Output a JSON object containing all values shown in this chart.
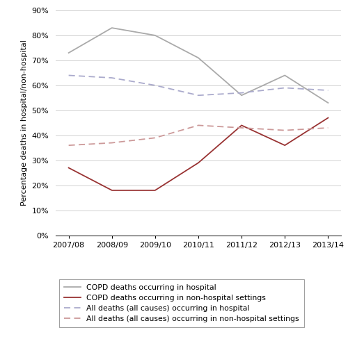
{
  "x_labels": [
    "2007/08",
    "2008/09",
    "2009/10",
    "2010/11",
    "2011/12",
    "2012/13",
    "2013/14"
  ],
  "copd_hospital": [
    73,
    83,
    80,
    71,
    56,
    64,
    53
  ],
  "copd_non_hospital": [
    27,
    18,
    18,
    29,
    44,
    36,
    47
  ],
  "all_hospital": [
    64,
    63,
    60,
    56,
    57,
    59,
    58
  ],
  "all_non_hospital": [
    36,
    37,
    39,
    44,
    43,
    42,
    43
  ],
  "copd_hospital_color": "#aaaaaa",
  "copd_non_hospital_color": "#993333",
  "all_hospital_color": "#aaaacc",
  "all_non_hospital_color": "#cc9999",
  "ylabel": "Percentage deaths in hospital/non-hospital",
  "ylim": [
    0,
    90
  ],
  "yticks": [
    0,
    10,
    20,
    30,
    40,
    50,
    60,
    70,
    80,
    90
  ],
  "legend_labels": [
    "COPD deaths occurring in hospital",
    "COPD deaths occurring in non-hospital settings",
    "All deaths (all causes) occurring in hospital",
    "All deaths (all causes) occurring in non-hospital settings"
  ]
}
